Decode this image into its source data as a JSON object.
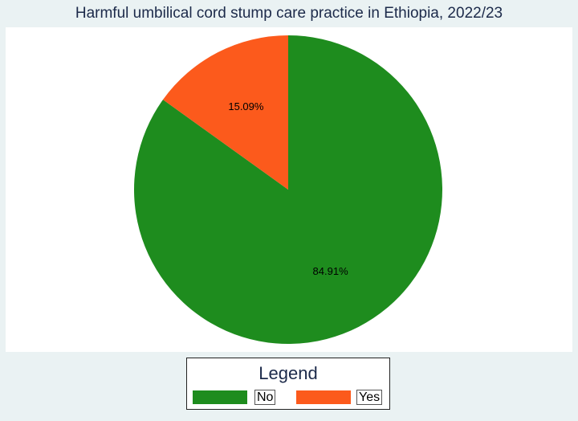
{
  "chart_data": {
    "type": "pie",
    "title": "Harmful umbilical cord stump care practice in Ethiopia, 2022/23",
    "slices": [
      {
        "label": "No",
        "value": 84.91,
        "display": "84.91%",
        "color": "#1e8c1e"
      },
      {
        "label": "Yes",
        "value": 15.09,
        "display": "15.09%",
        "color": "#fc5a1c"
      }
    ],
    "start_angle_deg": 0,
    "direction": "clockwise",
    "legend": {
      "title": "Legend",
      "placement": "bottom-center"
    }
  }
}
